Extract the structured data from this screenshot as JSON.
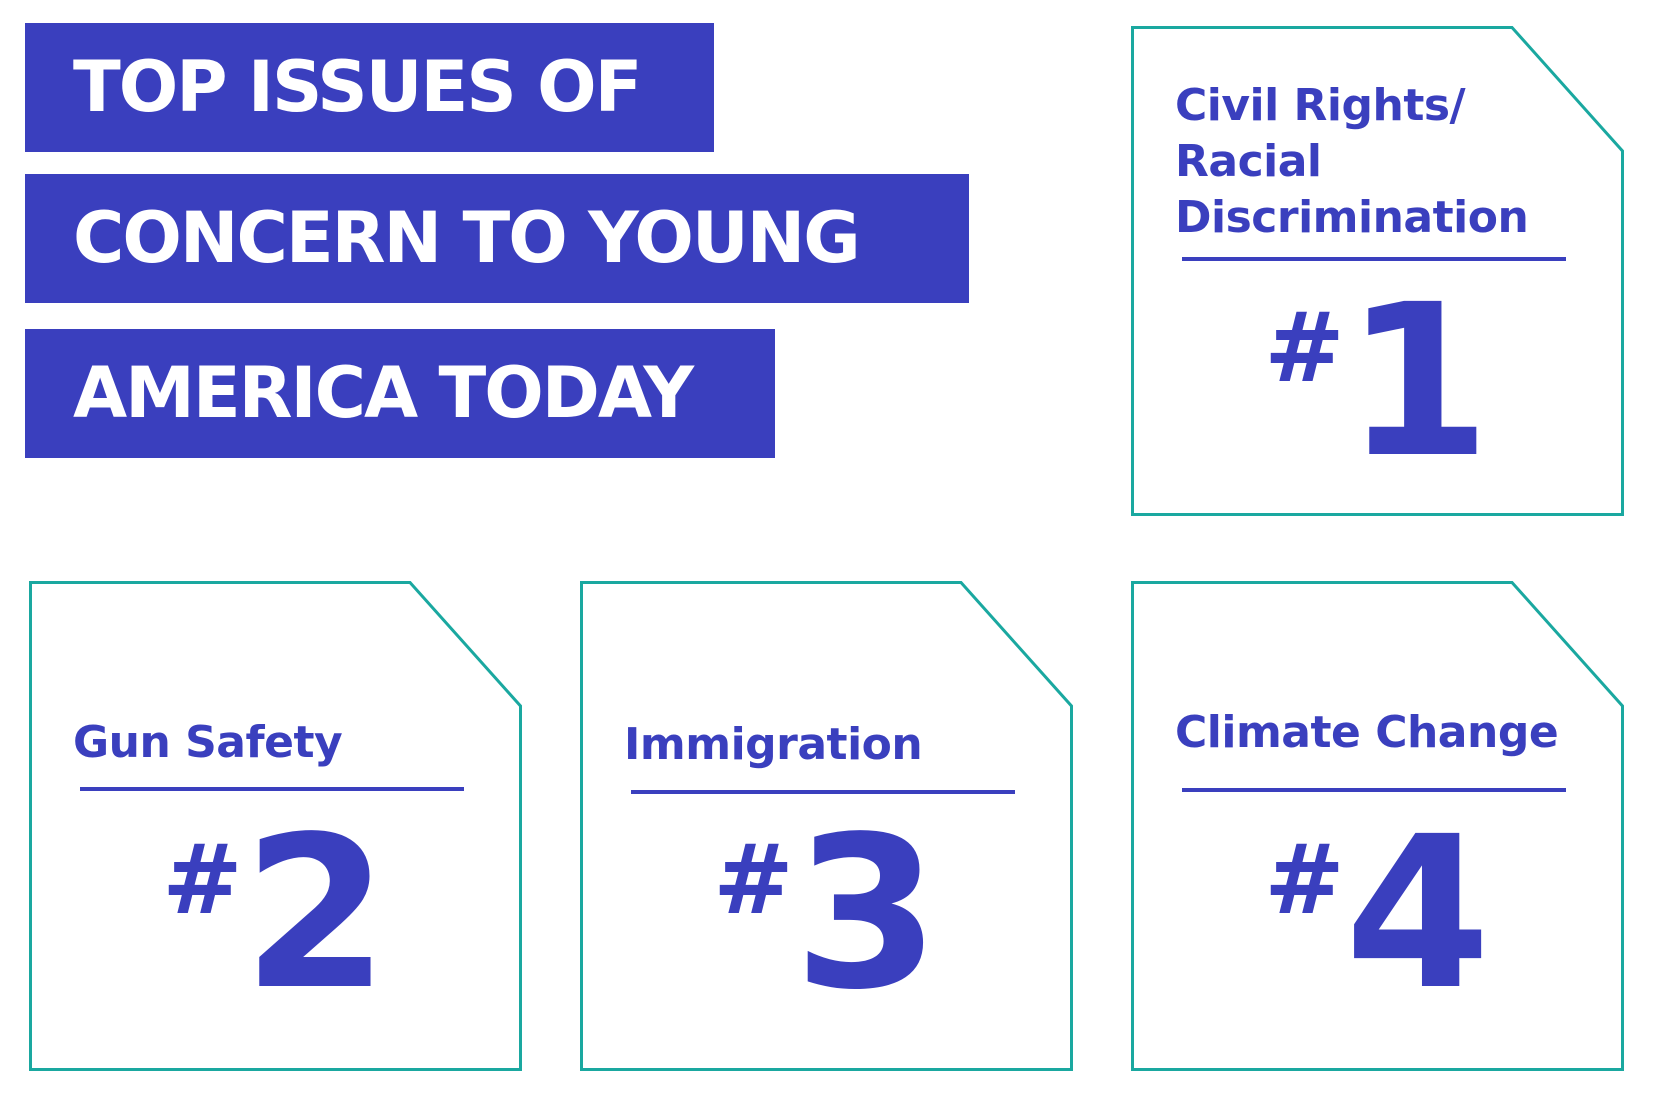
{
  "title": {
    "lines": [
      "TOP ISSUES OF",
      "CONCERN TO YOUNG",
      "AMERICA TODAY"
    ]
  },
  "cards": [
    {
      "label": "Civil Rights/\nRacial\nDiscrimination",
      "hash": "#",
      "rank": "1"
    },
    {
      "label": "Gun Safety",
      "hash": "#",
      "rank": "2"
    },
    {
      "label": "Immigration",
      "hash": "#",
      "rank": "3"
    },
    {
      "label": "Climate Change",
      "hash": "#",
      "rank": "4"
    }
  ],
  "colors": {
    "brand_blue": "#3a3fbe",
    "frame_teal": "#1aa8a0",
    "background": "#ffffff"
  }
}
